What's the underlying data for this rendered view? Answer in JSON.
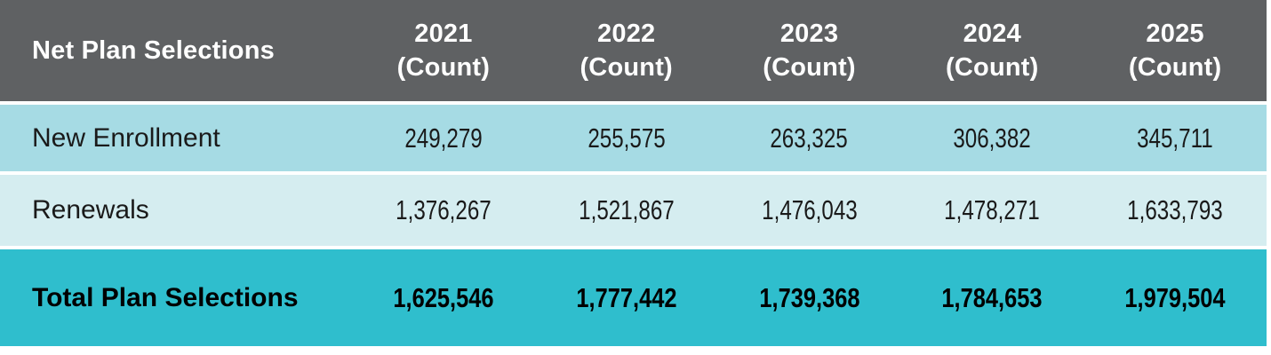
{
  "colors": {
    "page_bg": "#ffffff",
    "header_bg": "#5f6163",
    "header_text": "#ffffff",
    "row_new_enrollment_bg": "#a6dbe4",
    "row_renewals_bg": "#d5edf0",
    "row_total_bg": "#2fbecd",
    "body_text": "#1a1a1a",
    "total_text": "#000000"
  },
  "table": {
    "title": "Net Plan Selections",
    "columns": [
      {
        "year": "2021",
        "unit": "(Count)"
      },
      {
        "year": "2022",
        "unit": "(Count)"
      },
      {
        "year": "2023",
        "unit": "(Count)"
      },
      {
        "year": "2024",
        "unit": "(Count)"
      },
      {
        "year": "2025",
        "unit": "(Count)"
      }
    ],
    "rows": [
      {
        "label": "New Enrollment",
        "values": [
          "249,279",
          "255,575",
          "263,325",
          "306,382",
          "345,711"
        ]
      },
      {
        "label": "Renewals",
        "values": [
          "1,376,267",
          "1,521,867",
          "1,476,043",
          "1,478,271",
          "1,633,793"
        ]
      }
    ],
    "total_row": {
      "label": "Total Plan Selections",
      "values": [
        "1,625,546",
        "1,777,442",
        "1,739,368",
        "1,784,653",
        "1,979,504"
      ]
    }
  },
  "chart_data": {
    "type": "table",
    "title": "Net Plan Selections",
    "unit": "Count",
    "categories": [
      "2021",
      "2022",
      "2023",
      "2024",
      "2025"
    ],
    "series": [
      {
        "name": "New Enrollment",
        "values": [
          249279,
          255575,
          263325,
          306382,
          345711
        ]
      },
      {
        "name": "Renewals",
        "values": [
          1376267,
          1521867,
          1476043,
          1478271,
          1633793
        ]
      },
      {
        "name": "Total Plan Selections",
        "values": [
          1625546,
          1777442,
          1739368,
          1784653,
          1979504
        ]
      }
    ]
  }
}
